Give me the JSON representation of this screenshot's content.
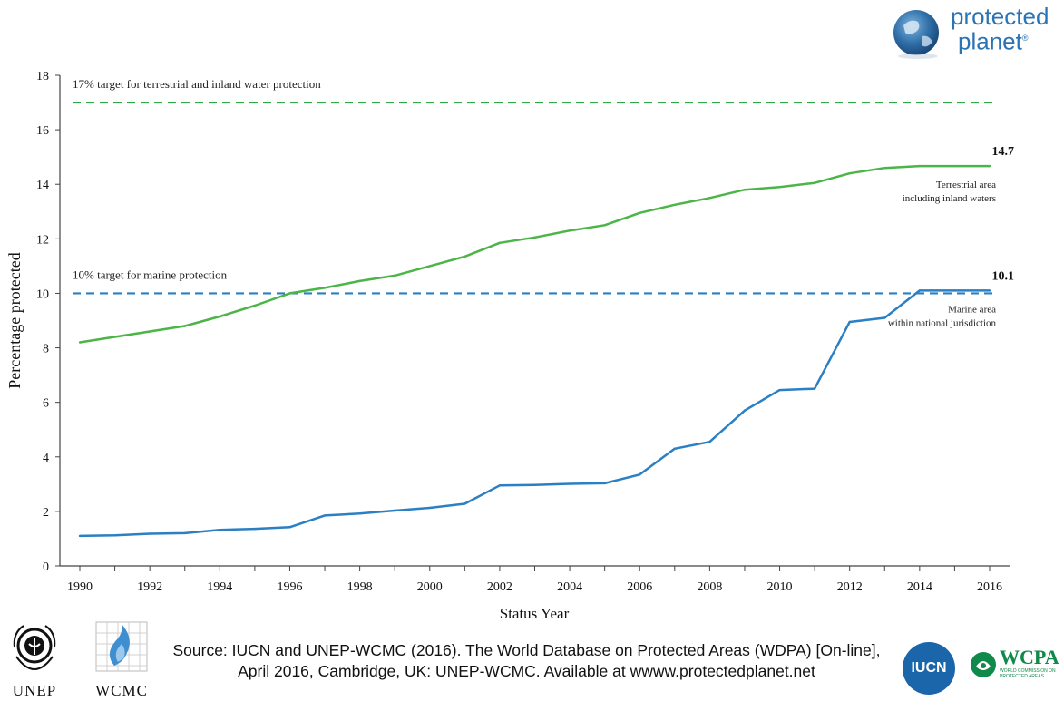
{
  "brand": {
    "logo_line1": "protected",
    "logo_line2": "planet",
    "logo_mark": "®"
  },
  "chart_data": {
    "type": "line",
    "title": "",
    "xlabel": "Status Year",
    "ylabel": "Percentage protected",
    "xlim": [
      1990,
      2016
    ],
    "ylim": [
      0,
      18
    ],
    "x_ticks": [
      1990,
      1992,
      1994,
      1996,
      1998,
      2000,
      2002,
      2004,
      2006,
      2008,
      2010,
      2012,
      2014,
      2016
    ],
    "y_ticks": [
      0,
      2,
      4,
      6,
      8,
      10,
      12,
      14,
      16,
      18
    ],
    "grid": false,
    "x": [
      1990,
      1991,
      1992,
      1993,
      1994,
      1995,
      1996,
      1997,
      1998,
      1999,
      2000,
      2001,
      2002,
      2003,
      2004,
      2005,
      2006,
      2007,
      2008,
      2009,
      2010,
      2011,
      2012,
      2013,
      2014,
      2015,
      2016
    ],
    "series": [
      {
        "id": "terrestrial",
        "name": "Terrestrial area including inland waters",
        "label_lines": [
          "Terrestrial area",
          "including inland waters"
        ],
        "color": "#4cb548",
        "values": [
          8.2,
          8.4,
          8.6,
          8.8,
          9.15,
          9.55,
          10.0,
          10.2,
          10.45,
          10.65,
          11.0,
          11.35,
          11.85,
          12.05,
          12.3,
          12.5,
          12.95,
          13.25,
          13.5,
          13.8,
          13.9,
          14.05,
          14.4,
          14.6,
          14.67,
          14.67,
          14.67
        ],
        "end_label": "14.7"
      },
      {
        "id": "marine",
        "name": "Marine area within national jurisdiction",
        "label_lines": [
          "Marine area",
          "within national jurisdiction"
        ],
        "color": "#2b7fc3",
        "values": [
          1.1,
          1.12,
          1.18,
          1.2,
          1.32,
          1.36,
          1.42,
          1.85,
          1.92,
          2.03,
          2.13,
          2.28,
          2.95,
          2.97,
          3.01,
          3.03,
          3.35,
          4.3,
          4.55,
          5.7,
          6.45,
          6.5,
          8.95,
          9.1,
          10.1,
          10.1,
          10.1
        ],
        "end_label": "10.1"
      }
    ],
    "reference_lines": [
      {
        "id": "terrestrial-target",
        "value": 17,
        "color": "#2ea84a",
        "label": "17% target for terrestrial and inland water protection"
      },
      {
        "id": "marine-target",
        "value": 10,
        "color": "#2b7fc3",
        "label": "10% target for marine protection"
      }
    ]
  },
  "footer": {
    "source_line1": "Source: IUCN and UNEP-WCMC (2016). The World Database on Protected Areas (WDPA) [On-line],",
    "source_line2": "April 2016, Cambridge, UK: UNEP-WCMC. Available at wwww.protectedplanet.net",
    "unep": "UNEP",
    "wcmc": "WCMC",
    "iucn": "IUCN",
    "wcpa": "WCPA",
    "wcpa_sub": "WORLD COMMISSION ON PROTECTED AREAS"
  }
}
